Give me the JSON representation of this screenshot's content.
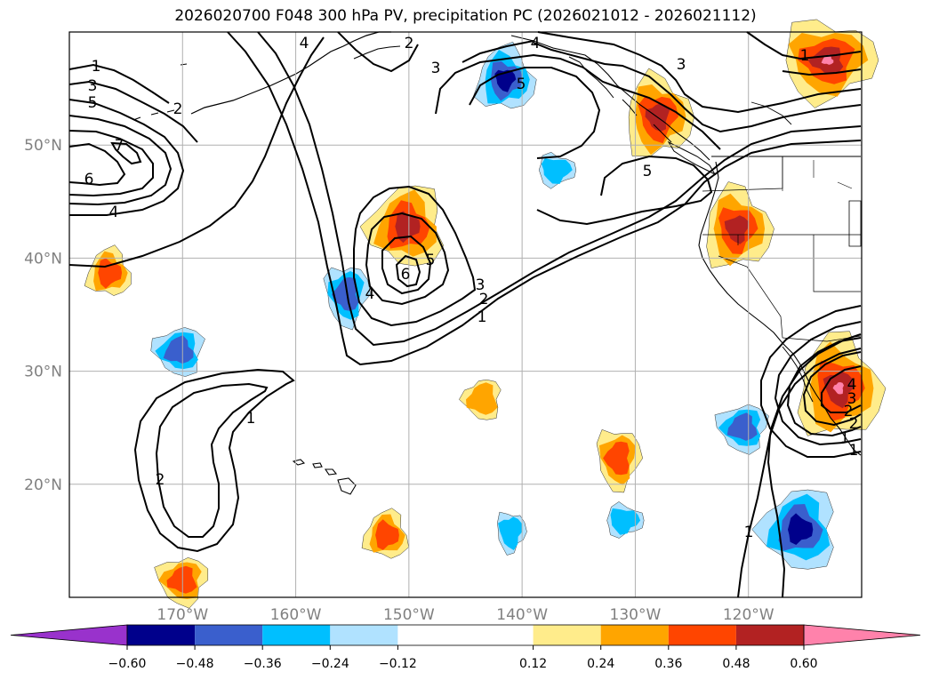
{
  "title": "2026020700 F048 300 hPa PV, precipitation PC (2026021012 - 2026021112)",
  "map": {
    "lon_range": [
      -180,
      -110
    ],
    "lat_range": [
      10,
      60
    ],
    "lat_ticks": [
      {
        "lat": 50,
        "label": "50°N"
      },
      {
        "lat": 40,
        "label": "40°N"
      },
      {
        "lat": 30,
        "label": "30°N"
      },
      {
        "lat": 20,
        "label": "20°N"
      }
    ],
    "lon_ticks": [
      {
        "lon": -170,
        "label": "170°W"
      },
      {
        "lon": -160,
        "label": "160°W"
      },
      {
        "lon": -150,
        "label": "150°W"
      },
      {
        "lon": -140,
        "label": "140°W"
      },
      {
        "lon": -130,
        "label": "130°W"
      },
      {
        "lon": -120,
        "label": "120°W"
      }
    ],
    "grid_lons": [
      -170,
      -160,
      -150,
      -140,
      -130,
      -120,
      -110
    ],
    "grid_lats": [
      20,
      30,
      40,
      50
    ],
    "contour_variable": "300 hPa PV",
    "contour_labels": [
      "1",
      "3",
      "5",
      "2",
      "7",
      "6",
      "4",
      "1",
      "2",
      "4",
      "2",
      "3",
      "4",
      "3",
      "5",
      "5",
      "6",
      "4",
      "5",
      "3",
      "2",
      "1",
      "1",
      "2",
      "3",
      "4",
      "1",
      "1",
      "2",
      "1"
    ],
    "shading_variable": "precipitation PC"
  },
  "colorbar": {
    "tick_labels": [
      "−0.60",
      "−0.48",
      "−0.36",
      "−0.24",
      "−0.12",
      "0.12",
      "0.24",
      "0.36",
      "0.48",
      "0.60"
    ],
    "tick_values": [
      -0.6,
      -0.48,
      -0.36,
      -0.24,
      -0.12,
      0.12,
      0.24,
      0.36,
      0.48,
      0.6
    ],
    "colors": [
      "#9932cc",
      "#00008b",
      "#3a5fcd",
      "#00bfff",
      "#b0e2ff",
      "#ffffff",
      "#ffec8b",
      "#ffa500",
      "#ff4500",
      "#b22222",
      "#ff82ab"
    ],
    "extend": "both"
  },
  "precip_blobs": [
    {
      "sign": "neg",
      "level": 3,
      "lon": -141.5,
      "lat": 55.8
    },
    {
      "sign": "pos",
      "level": 3,
      "lon": -128.0,
      "lat": 52.5
    },
    {
      "sign": "pos",
      "level": 4,
      "lon": -113.0,
      "lat": 57.5
    },
    {
      "sign": "neg",
      "level": 2,
      "lon": -155.5,
      "lat": 36.8
    },
    {
      "sign": "neg",
      "level": 2,
      "lon": -170.3,
      "lat": 31.8
    },
    {
      "sign": "pos",
      "level": 3,
      "lon": -150.2,
      "lat": 42.8
    },
    {
      "sign": "pos",
      "level": 2,
      "lon": -176.5,
      "lat": 38.7
    },
    {
      "sign": "pos",
      "level": 3,
      "lon": -121.0,
      "lat": 42.6
    },
    {
      "sign": "neg",
      "level": 1,
      "lon": -137.0,
      "lat": 47.8
    },
    {
      "sign": "pos",
      "level": 2,
      "lon": -131.5,
      "lat": 22.3
    },
    {
      "sign": "neg",
      "level": 2,
      "lon": -120.5,
      "lat": 25.0
    },
    {
      "sign": "neg",
      "level": 3,
      "lon": -115.5,
      "lat": 16.0
    },
    {
      "sign": "pos",
      "level": 2,
      "lon": -152.0,
      "lat": 15.5
    },
    {
      "sign": "pos",
      "level": 4,
      "lon": -112.0,
      "lat": 28.5
    },
    {
      "sign": "neg",
      "level": 1,
      "lon": -131.0,
      "lat": 16.8
    },
    {
      "sign": "neg",
      "level": 1,
      "lon": -141.0,
      "lat": 15.8
    },
    {
      "sign": "pos",
      "level": 2,
      "lon": -170.0,
      "lat": 11.5
    },
    {
      "sign": "pos",
      "level": 1,
      "lon": -143.5,
      "lat": 27.5
    }
  ]
}
